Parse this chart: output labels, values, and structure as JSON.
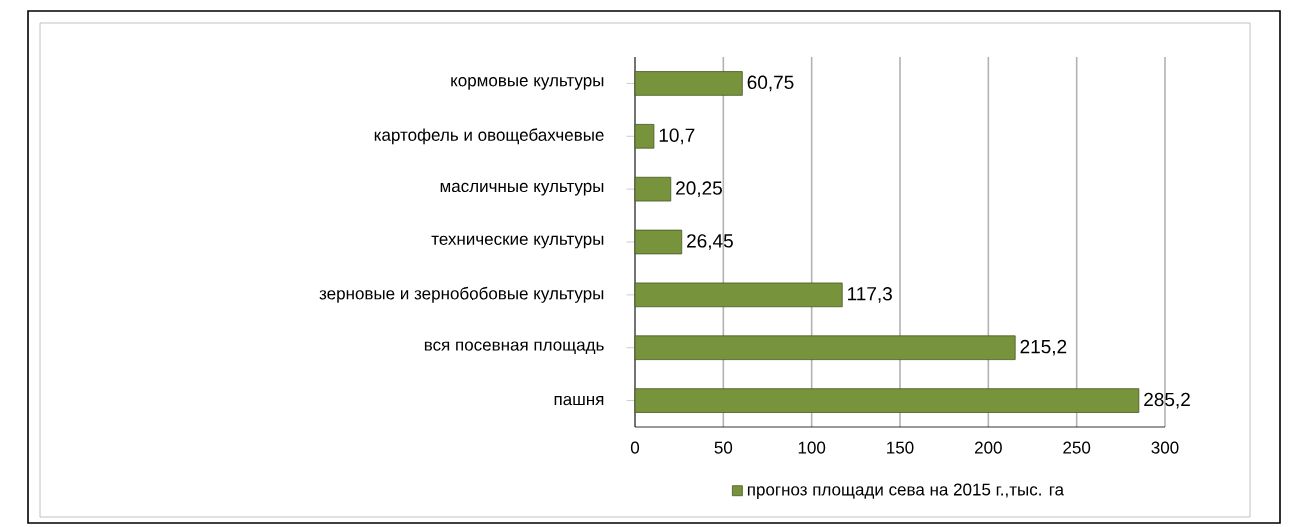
{
  "chart_data": {
    "type": "bar",
    "orientation": "horizontal",
    "categories": [
      "кормовые культуры",
      "картофель и овощебахчевые",
      "масличные культуры",
      "технические культуры",
      "зерновые и зернобобовые культуры",
      "вся посевная площадь",
      "пашня"
    ],
    "series": [
      {
        "name": "прогноз площади сева на 2015 г.,тыс. га",
        "color": "#77933c",
        "values": [
          60.75,
          10.7,
          20.25,
          26.45,
          117.3,
          215.2,
          285.2
        ],
        "value_labels": [
          "60,75",
          "10,7",
          "20,25",
          "26,45",
          "117,3",
          "215,2",
          "285,2"
        ]
      }
    ],
    "xlim": [
      0,
      300
    ],
    "xticks": [
      0,
      50,
      100,
      150,
      200,
      250,
      300
    ],
    "grid": "x",
    "legend": "bottom"
  }
}
